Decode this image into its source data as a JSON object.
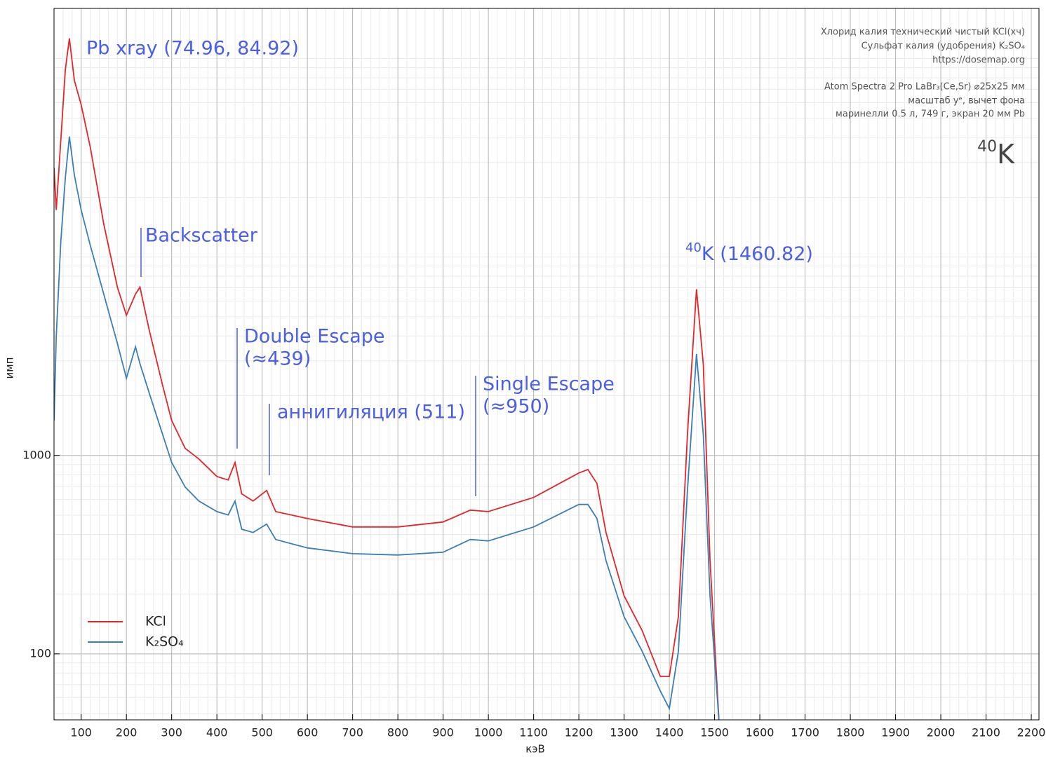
{
  "chart_data": {
    "type": "line",
    "y_scale": "log",
    "grid": true,
    "minor_grid": true,
    "legend": "lower left",
    "xlabel": "кэВ",
    "ylabel": "имп",
    "xlim": [
      40,
      2217
    ],
    "ylim": [
      46.5,
      179000
    ],
    "xticks": [
      100,
      200,
      300,
      400,
      500,
      600,
      700,
      800,
      900,
      1000,
      1100,
      1200,
      1300,
      1400,
      1500,
      1600,
      1700,
      1800,
      1900,
      2000,
      2100,
      2200
    ],
    "yticks": [
      100,
      1000
    ],
    "x": [
      40,
      45,
      55,
      65,
      74,
      85,
      100,
      120,
      150,
      180,
      200,
      220,
      230,
      250,
      280,
      300,
      330,
      360,
      400,
      425,
      440,
      455,
      480,
      510,
      530,
      600,
      700,
      800,
      900,
      960,
      1000,
      1100,
      1200,
      1220,
      1240,
      1260,
      1300,
      1340,
      1380,
      1400,
      1420,
      1440,
      1460,
      1475,
      1490,
      1510
    ],
    "series": [
      {
        "name": "KCl",
        "color": "#e3262b",
        "values": [
          28100,
          17250,
          38900,
          87700,
          126500,
          77700,
          58500,
          35900,
          14650,
          7050,
          5090,
          6500,
          7050,
          4330,
          2255,
          1500,
          1085,
          960,
          783,
          752,
          922,
          640,
          589,
          666,
          521,
          481,
          436,
          436,
          462,
          530,
          521,
          614,
          816,
          849,
          722,
          409,
          196,
          131,
          77,
          77,
          154,
          1276,
          6880,
          2880,
          295,
          45
        ]
      },
      {
        "name": "K₂SO₄",
        "color": "#3a7fb8",
        "values": [
          1500,
          4000,
          12000,
          25000,
          40500,
          25900,
          17250,
          11480,
          6500,
          3670,
          2450,
          3530,
          2900,
          2080,
          1276,
          922,
          693,
          589,
          521,
          501,
          589,
          425,
          409,
          451,
          377,
          342,
          320,
          315,
          325,
          377,
          371,
          436,
          566,
          566,
          481,
          295,
          154,
          103,
          65,
          53,
          103,
          666,
          3250,
          1276,
          196,
          45
        ]
      }
    ],
    "annotations": [
      {
        "lines": [
          "Pb xray (74.96, 84.92)"
        ]
      },
      {
        "lines": [
          "Backscatter"
        ]
      },
      {
        "lines": [
          "Double Escape",
          "(≈439)"
        ]
      },
      {
        "lines": [
          "аннигиляция (511)"
        ]
      },
      {
        "lines": [
          "Single Escape",
          "(≈950)"
        ]
      },
      {
        "sup": "40",
        "text": "K (1460.82)"
      }
    ],
    "info": [
      "Хлорид калия технический чистый KCl(хч)",
      "Сульфат калия (удобрения) K₂SO₄",
      "https://dosemap.org",
      "Atom Spectra 2 Pro LaBr₃(Ce,Sr) ⌀25x25 мм",
      "масштаб yᵉ, вычет фона",
      "маринелли 0.5 л, 749 г, экран 20 мм Pb"
    ],
    "isotope": {
      "sup": "40",
      "text": "K"
    }
  }
}
